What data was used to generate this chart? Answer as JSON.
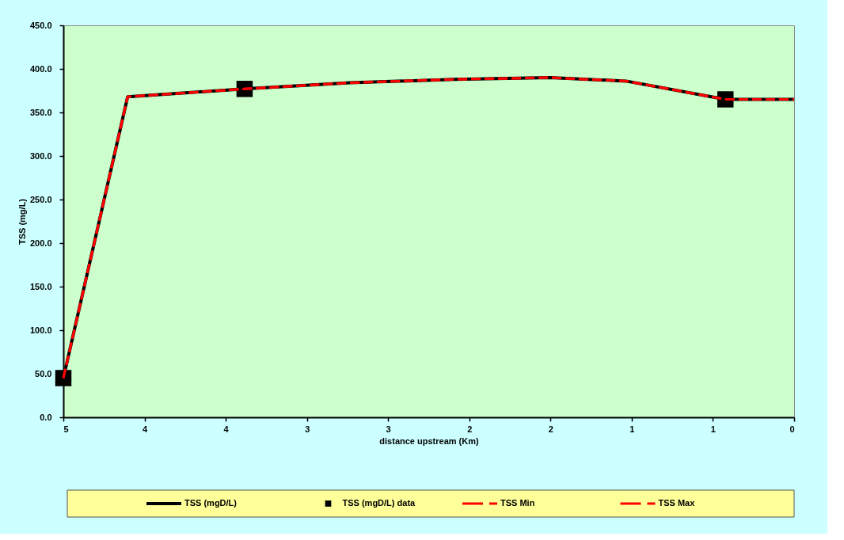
{
  "chart_data": {
    "type": "line",
    "xlabel": "distance upstream (Km)",
    "ylabel": "TSS (mg/L)",
    "x": [
      5,
      4.56,
      3.76,
      3.04,
      2.33,
      1.67,
      1.15,
      0.47,
      0
    ],
    "series": [
      {
        "name": "TSS (mgD/L)",
        "color": "#000000",
        "line_style": "solid",
        "marker": "none",
        "values": [
          45,
          368,
          377,
          384,
          388,
          390,
          386,
          365,
          365
        ]
      },
      {
        "name": "TSS (mgD/L) data",
        "type": "scatter",
        "color": "#000000",
        "marker": "square",
        "x": [
          5,
          3.76,
          0.47
        ],
        "values": [
          45,
          377,
          365
        ]
      },
      {
        "name": "TSS Min",
        "color": "#ff0000",
        "line_style": "dashed",
        "marker": "none",
        "values": [
          45,
          368,
          377,
          384,
          388,
          390,
          386,
          365,
          365
        ]
      },
      {
        "name": "TSS Max",
        "color": "#ff0000",
        "line_style": "dashed",
        "marker": "none",
        "values": [
          45,
          368,
          377,
          384,
          388,
          390,
          386,
          365,
          365
        ]
      }
    ],
    "xlim": [
      5,
      0
    ],
    "xticks": [
      {
        "value": 5,
        "label": "5"
      },
      {
        "value": 4.444,
        "label": "4"
      },
      {
        "value": 3.889,
        "label": "4"
      },
      {
        "value": 3.333,
        "label": "3"
      },
      {
        "value": 2.778,
        "label": "3"
      },
      {
        "value": 2.222,
        "label": "2"
      },
      {
        "value": 1.667,
        "label": "2"
      },
      {
        "value": 1.111,
        "label": "1"
      },
      {
        "value": 0.556,
        "label": "1"
      },
      {
        "value": 0,
        "label": "0"
      }
    ],
    "ylim": [
      0,
      450
    ],
    "yticks": [
      {
        "value": 0,
        "label": "0.0"
      },
      {
        "value": 50,
        "label": "50.0"
      },
      {
        "value": 100,
        "label": "100.0"
      },
      {
        "value": 150,
        "label": "150.0"
      },
      {
        "value": 200,
        "label": "200.0"
      },
      {
        "value": 250,
        "label": "250.0"
      },
      {
        "value": 300,
        "label": "300.0"
      },
      {
        "value": 350,
        "label": "350.0"
      },
      {
        "value": 400,
        "label": "400.0"
      },
      {
        "value": 450,
        "label": "450.0"
      }
    ],
    "grid": false,
    "legend": "bottom"
  }
}
